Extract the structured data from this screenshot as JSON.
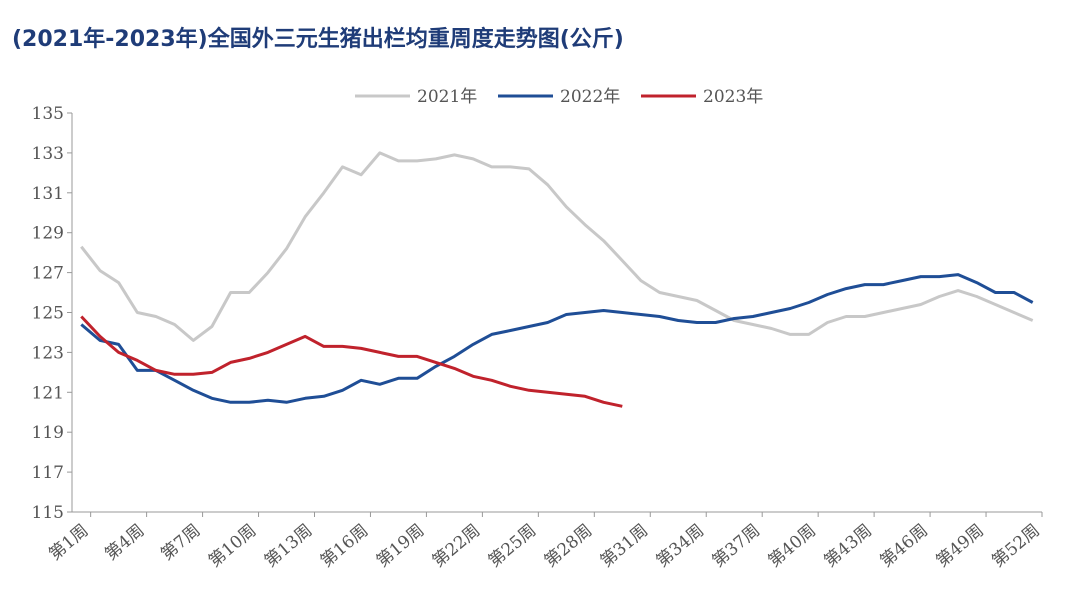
{
  "chart_data": {
    "type": "line",
    "title": "(2021年-2023年)全国外三元生猪出栏均重周度走势图(公斤)",
    "categories": [
      "第1周",
      null,
      null,
      "第4周",
      null,
      null,
      "第7周",
      null,
      null,
      "第10周",
      null,
      null,
      "第13周",
      null,
      null,
      "第16周",
      null,
      null,
      "第19周",
      null,
      null,
      "第22周",
      null,
      null,
      "第25周",
      null,
      null,
      "第28周",
      null,
      null,
      "第31周",
      null,
      null,
      "第34周",
      null,
      null,
      "第37周",
      null,
      null,
      "第40周",
      null,
      null,
      "第43周",
      null,
      null,
      "第46周",
      null,
      null,
      "第49周",
      null,
      null,
      "第52周"
    ],
    "series": [
      {
        "name": "2021年",
        "color": "#c8c8c8",
        "values": [
          128.3,
          127.1,
          126.5,
          125.0,
          124.8,
          124.4,
          123.6,
          124.3,
          126.0,
          126.0,
          127.0,
          128.2,
          129.8,
          131.0,
          132.3,
          131.9,
          133.0,
          132.6,
          132.6,
          132.7,
          132.9,
          132.7,
          132.3,
          132.3,
          132.2,
          131.4,
          130.3,
          129.4,
          128.6,
          127.6,
          126.6,
          126.0,
          125.8,
          125.6,
          125.1,
          124.6,
          124.4,
          124.2,
          123.9,
          123.9,
          124.5,
          124.8,
          124.8,
          125.0,
          125.2,
          125.4,
          125.8,
          126.1,
          125.8,
          125.4,
          125.0,
          124.6
        ]
      },
      {
        "name": "2022年",
        "color": "#1f4e96",
        "values": [
          124.4,
          123.6,
          123.4,
          122.1,
          122.1,
          121.6,
          121.1,
          120.7,
          120.5,
          120.5,
          120.6,
          120.5,
          120.7,
          120.8,
          121.1,
          121.6,
          121.4,
          121.7,
          121.7,
          122.3,
          122.8,
          123.4,
          123.9,
          124.1,
          124.3,
          124.5,
          124.9,
          125.0,
          125.1,
          125.0,
          124.9,
          124.8,
          124.6,
          124.5,
          124.5,
          124.7,
          124.8,
          125.0,
          125.2,
          125.5,
          125.9,
          126.2,
          126.4,
          126.4,
          126.6,
          126.8,
          126.8,
          126.9,
          126.5,
          126.0,
          126.0,
          125.5
        ]
      },
      {
        "name": "2023年",
        "color": "#c0222c",
        "values": [
          124.8,
          123.8,
          123.0,
          122.6,
          122.1,
          121.9,
          121.9,
          122.0,
          122.5,
          122.7,
          123.0,
          123.4,
          123.8,
          123.3,
          123.3,
          123.2,
          123.0,
          122.8,
          122.8,
          122.5,
          122.2,
          121.8,
          121.6,
          121.3,
          121.1,
          121.0,
          120.9,
          120.8,
          120.5,
          120.3,
          null,
          null,
          null,
          null,
          null,
          null,
          null,
          null,
          null,
          null,
          null,
          null,
          null,
          null,
          null,
          null,
          null,
          null,
          null,
          null,
          null,
          null
        ]
      }
    ],
    "ylim": [
      115,
      135
    ],
    "yticks": [
      115,
      117,
      119,
      121,
      123,
      125,
      127,
      129,
      131,
      133,
      135
    ],
    "legend": "top"
  }
}
